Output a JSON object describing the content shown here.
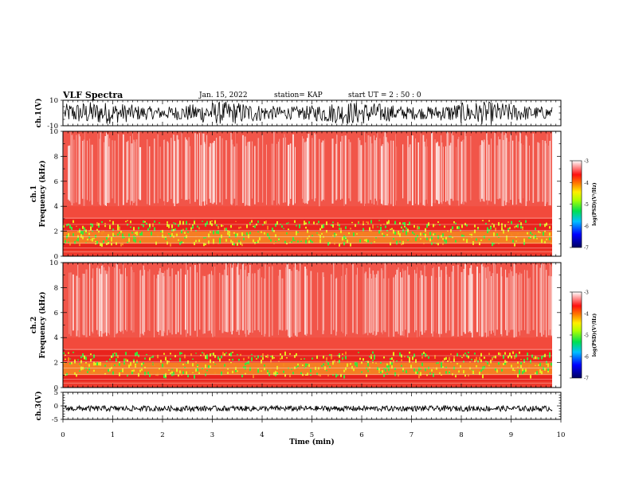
{
  "header": {
    "title": "VLF Spectra",
    "date": "Jan. 15, 2022",
    "station": "station= KAP",
    "start": "start  UT =   2 : 50 : 0"
  },
  "chart_data": [
    {
      "type": "line",
      "ylabel": "ch.1(V)",
      "ylim": [
        -10,
        10
      ],
      "yticks": [
        "10",
        "-10"
      ],
      "xlim": [
        0,
        10
      ],
      "description": "waveform"
    },
    {
      "type": "heatmap",
      "ylabel": "ch.1\nFrequency (kHz)",
      "ylim": [
        0,
        10
      ],
      "yticks": [
        "0",
        "2",
        "4",
        "6",
        "8",
        "10"
      ],
      "xlim": [
        0,
        10
      ],
      "colorbar": {
        "label": "log(PSD)(V²/Hz)",
        "range": [
          -7,
          -3
        ],
        "ticks": [
          "-3",
          "-4",
          "-5",
          "-6",
          "-7"
        ]
      }
    },
    {
      "type": "heatmap",
      "ylabel": "ch.2\nFrequency (kHz)",
      "ylim": [
        0,
        10
      ],
      "yticks": [
        "0",
        "2",
        "4",
        "6",
        "8",
        "10"
      ],
      "xlim": [
        0,
        10
      ],
      "colorbar": {
        "label": "log(PSD)(V²/Hz)",
        "range": [
          -7,
          -3
        ],
        "ticks": [
          "-3",
          "-4",
          "-5",
          "-6",
          "-7"
        ]
      }
    },
    {
      "type": "line",
      "ylabel": "ch.3(V)",
      "ylim": [
        -5,
        5
      ],
      "yticks": [
        "5",
        "0",
        "-5"
      ],
      "xlim": [
        0,
        10
      ],
      "xticks": [
        "0",
        "1",
        "2",
        "3",
        "4",
        "5",
        "6",
        "7",
        "8",
        "9",
        "10"
      ],
      "xlabel": "Time (min)"
    }
  ],
  "colors": {
    "bg": "#ffffff",
    "red": "#e8231c",
    "orange": "#f6861e",
    "yellow": "#e6e81c",
    "green": "#3fe23a",
    "line": "#000000"
  }
}
